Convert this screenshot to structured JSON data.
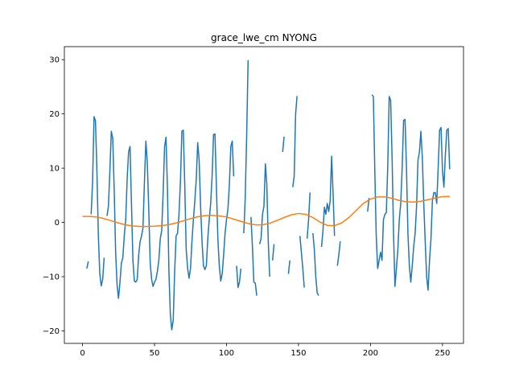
{
  "chart_data": {
    "type": "line",
    "title": "grace_lwe_cm NYONG",
    "xlabel": "",
    "ylabel": "",
    "xlim": [
      -12.6,
      264.6
    ],
    "ylim": [
      -22.3,
      32.4
    ],
    "xticks": [
      0,
      50,
      100,
      150,
      200,
      250
    ],
    "yticks": [
      -20,
      -10,
      0,
      10,
      20,
      30
    ],
    "grid": false,
    "series": [
      {
        "color": "#1f77b4",
        "segments": [
          [
            [
              3,
              -8.5
            ],
            [
              4,
              -7.2
            ]
          ],
          [
            [
              6,
              1.5
            ],
            [
              7,
              7.5
            ],
            [
              8,
              19.5
            ],
            [
              9,
              18.7
            ],
            [
              10,
              9.5
            ],
            [
              11,
              -2.5
            ],
            [
              12,
              -9.5
            ],
            [
              13,
              -11.7
            ],
            [
              14,
              -10.5
            ],
            [
              15,
              -6.5
            ]
          ],
          [
            [
              17,
              1.2
            ],
            [
              18,
              3.0
            ],
            [
              19,
              9.5
            ],
            [
              20,
              16.8
            ],
            [
              21,
              15.5
            ],
            [
              22,
              6.0
            ],
            [
              23,
              -5.5
            ],
            [
              24,
              -11.5
            ],
            [
              25,
              -14.0
            ],
            [
              26,
              -11.0
            ],
            [
              27,
              -7.5
            ],
            [
              28,
              -6.5
            ],
            [
              29,
              -2.5
            ],
            [
              30,
              0.5
            ],
            [
              31,
              8.0
            ],
            [
              32,
              13.0
            ],
            [
              33,
              14.0
            ],
            [
              34,
              3.5
            ],
            [
              35,
              -7.0
            ],
            [
              36,
              -10.8
            ],
            [
              37,
              -11.0
            ],
            [
              38,
              -10.5
            ],
            [
              39,
              -6.0
            ],
            [
              40,
              -3.5
            ],
            [
              41,
              -2.5
            ],
            [
              42,
              -1.0
            ],
            [
              43,
              7.5
            ],
            [
              44,
              15.0
            ],
            [
              45,
              11.0
            ],
            [
              46,
              2.5
            ],
            [
              47,
              -7.5
            ],
            [
              48,
              -10.5
            ],
            [
              49,
              -11.8
            ],
            [
              50,
              -11.0
            ],
            [
              51,
              -10.5
            ],
            [
              52,
              -9.0
            ],
            [
              53,
              -7.0
            ],
            [
              54,
              -3.0
            ],
            [
              55,
              -1.5
            ],
            [
              56,
              5.5
            ],
            [
              57,
              14.0
            ],
            [
              58,
              15.7
            ],
            [
              59,
              6.0
            ],
            [
              60,
              -9.0
            ],
            [
              61,
              -17.0
            ],
            [
              62,
              -19.8
            ],
            [
              63,
              -18.0
            ],
            [
              64,
              -9.0
            ],
            [
              65,
              -2.5
            ],
            [
              66,
              -2.0
            ],
            [
              67,
              1.5
            ],
            [
              68,
              7.5
            ],
            [
              69,
              16.8
            ],
            [
              70,
              17.0
            ],
            [
              71,
              7.0
            ],
            [
              72,
              -5.0
            ],
            [
              73,
              -8.5
            ],
            [
              74,
              -10.3
            ],
            [
              75,
              -8.5
            ],
            [
              76,
              -3.5
            ],
            [
              77,
              0.5
            ],
            [
              78,
              4.0
            ],
            [
              79,
              8.0
            ],
            [
              80,
              14.7
            ],
            [
              81,
              11.5
            ],
            [
              82,
              3.0
            ],
            [
              83,
              -3.5
            ],
            [
              84,
              -8.0
            ],
            [
              85,
              -8.7
            ],
            [
              86,
              -8.0
            ],
            [
              87,
              -3.0
            ],
            [
              88,
              0.5
            ],
            [
              89,
              3.5
            ],
            [
              90,
              8.5
            ],
            [
              91,
              16.2
            ],
            [
              92,
              16.3
            ],
            [
              93,
              6.5
            ],
            [
              94,
              -3.0
            ],
            [
              95,
              -8.0
            ],
            [
              96,
              -10.8
            ],
            [
              97,
              -9.5
            ],
            [
              98,
              -6.0
            ],
            [
              99,
              -2.0
            ],
            [
              100,
              0.5
            ],
            [
              101,
              2.5
            ],
            [
              102,
              7.0
            ],
            [
              103,
              14.0
            ],
            [
              104,
              15.0
            ],
            [
              105,
              8.5
            ]
          ],
          [
            [
              107,
              -8.0
            ],
            [
              108,
              -12.0
            ],
            [
              109,
              -11.0
            ],
            [
              110,
              -8.5
            ]
          ],
          [
            [
              112,
              -2.0
            ],
            [
              113,
              4.5
            ],
            [
              114,
              16.0
            ],
            [
              115,
              29.9
            ]
          ],
          [
            [
              117,
              1.0
            ],
            [
              118,
              -4.5
            ],
            [
              119,
              -11.0
            ],
            [
              120,
              -11.2
            ],
            [
              121,
              -13.5
            ]
          ],
          [
            [
              123,
              -4.0
            ],
            [
              124,
              -3.0
            ],
            [
              125,
              1.5
            ],
            [
              126,
              3.0
            ],
            [
              127,
              10.8
            ],
            [
              128,
              7.0
            ],
            [
              129,
              -3.5
            ],
            [
              130,
              -10.0
            ]
          ],
          [
            [
              132,
              -7.0
            ],
            [
              133,
              -4.0
            ]
          ],
          [
            [
              139,
              13.0
            ],
            [
              140,
              15.8
            ]
          ],
          [
            [
              143,
              -9.5
            ],
            [
              144,
              -7.0
            ]
          ],
          [
            [
              146,
              6.5
            ],
            [
              147,
              8.5
            ],
            [
              148,
              20.0
            ],
            [
              149,
              23.3
            ]
          ],
          [
            [
              151,
              -2.5
            ],
            [
              152,
              -5.5
            ],
            [
              153,
              -8.5
            ],
            [
              154,
              -12.0
            ]
          ],
          [
            [
              156,
              -3.0
            ],
            [
              157,
              0.5
            ],
            [
              158,
              5.5
            ]
          ],
          [
            [
              160,
              -2.0
            ],
            [
              161,
              -5.0
            ],
            [
              162,
              -10.0
            ],
            [
              163,
              -13.0
            ],
            [
              164,
              -13.5
            ]
          ],
          [
            [
              166,
              -4.5
            ],
            [
              167,
              -1.5
            ],
            [
              168,
              2.8
            ],
            [
              169,
              1.5
            ],
            [
              170,
              3.5
            ],
            [
              171,
              2.0
            ],
            [
              172,
              4.0
            ],
            [
              173,
              12.2
            ],
            [
              174,
              5.5
            ],
            [
              175,
              -2.5
            ]
          ],
          [
            [
              177,
              -8.0
            ],
            [
              178,
              -6.0
            ],
            [
              179,
              -3.5
            ]
          ],
          [
            [
              198,
              2.0
            ],
            [
              199,
              4.5
            ]
          ],
          [
            [
              201,
              23.5
            ],
            [
              202,
              23.2
            ],
            [
              203,
              9.5
            ],
            [
              204,
              -2.5
            ],
            [
              205,
              -8.5
            ],
            [
              206,
              -7.0
            ],
            [
              207,
              -5.5
            ],
            [
              208,
              -7.0
            ],
            [
              209,
              0.5
            ],
            [
              210,
              1.5
            ],
            [
              211,
              1.8
            ],
            [
              212,
              10.5
            ],
            [
              213,
              23.2
            ],
            [
              214,
              22.5
            ],
            [
              215,
              12.0
            ],
            [
              216,
              -2.0
            ],
            [
              217,
              -11.8
            ],
            [
              218,
              -8.5
            ],
            [
              219,
              -5.0
            ],
            [
              220,
              0.5
            ],
            [
              221,
              3.5
            ],
            [
              222,
              10.0
            ],
            [
              223,
              18.8
            ],
            [
              224,
              19.0
            ],
            [
              225,
              10.0
            ],
            [
              226,
              -2.0
            ],
            [
              227,
              -8.0
            ],
            [
              228,
              -11.0
            ],
            [
              229,
              -8.0
            ],
            [
              230,
              -4.5
            ],
            [
              231,
              -2.0
            ],
            [
              232,
              3.0
            ],
            [
              233,
              11.5
            ],
            [
              234,
              13.0
            ],
            [
              235,
              16.8
            ],
            [
              236,
              12.0
            ],
            [
              237,
              3.5
            ],
            [
              238,
              -3.5
            ],
            [
              239,
              -10.0
            ],
            [
              240,
              -12.5
            ],
            [
              241,
              -7.0
            ],
            [
              242,
              -3.0
            ],
            [
              243,
              4.0
            ],
            [
              244,
              5.5
            ],
            [
              245,
              5.5
            ],
            [
              246,
              3.5
            ],
            [
              247,
              10.0
            ],
            [
              248,
              17.0
            ],
            [
              249,
              17.5
            ],
            [
              250,
              9.5
            ],
            [
              251,
              6.5
            ],
            [
              252,
              12.5
            ],
            [
              253,
              17.0
            ],
            [
              254,
              17.3
            ],
            [
              255,
              9.8
            ]
          ]
        ]
      },
      {
        "color": "#ff7f0e",
        "segments": [
          [
            [
              0,
              1.1
            ],
            [
              5,
              1.1
            ],
            [
              10,
              1.0
            ],
            [
              15,
              0.7
            ],
            [
              20,
              0.3
            ],
            [
              25,
              -0.1
            ],
            [
              30,
              -0.45
            ],
            [
              35,
              -0.65
            ],
            [
              40,
              -0.75
            ],
            [
              45,
              -0.75
            ],
            [
              50,
              -0.7
            ],
            [
              55,
              -0.6
            ],
            [
              60,
              -0.4
            ],
            [
              65,
              -0.1
            ],
            [
              70,
              0.3
            ],
            [
              75,
              0.7
            ],
            [
              80,
              1.05
            ],
            [
              85,
              1.25
            ],
            [
              90,
              1.3
            ],
            [
              95,
              1.2
            ],
            [
              100,
              1.0
            ],
            [
              105,
              0.6
            ],
            [
              110,
              0.2
            ],
            [
              115,
              -0.2
            ],
            [
              120,
              -0.45
            ],
            [
              125,
              -0.45
            ],
            [
              130,
              -0.15
            ],
            [
              135,
              0.35
            ],
            [
              140,
              0.9
            ],
            [
              145,
              1.4
            ],
            [
              150,
              1.65
            ],
            [
              155,
              1.5
            ],
            [
              160,
              0.9
            ],
            [
              165,
              0.05
            ],
            [
              170,
              -0.55
            ],
            [
              175,
              -0.6
            ],
            [
              180,
              -0.1
            ],
            [
              185,
              0.9
            ],
            [
              190,
              2.2
            ],
            [
              195,
              3.5
            ],
            [
              200,
              4.3
            ],
            [
              205,
              4.7
            ],
            [
              210,
              4.7
            ],
            [
              215,
              4.45
            ],
            [
              220,
              4.05
            ],
            [
              225,
              3.8
            ],
            [
              230,
              3.75
            ],
            [
              235,
              3.9
            ],
            [
              240,
              4.2
            ],
            [
              245,
              4.5
            ],
            [
              250,
              4.75
            ],
            [
              255,
              4.8
            ]
          ]
        ]
      }
    ]
  }
}
